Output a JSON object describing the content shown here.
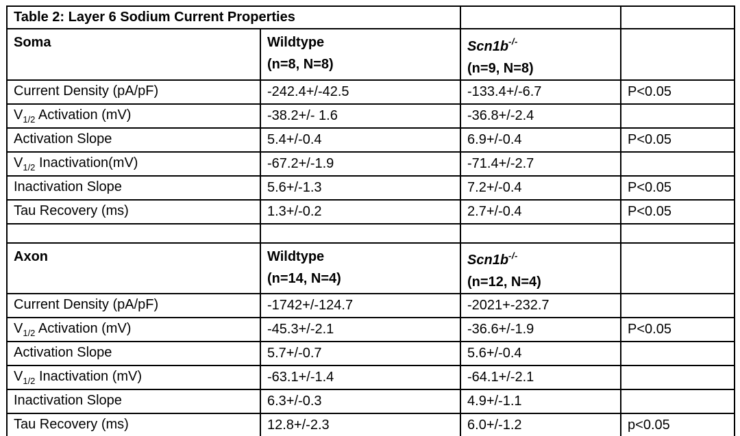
{
  "title": "Table 2: Layer 6 Sodium Current Properties",
  "colors": {
    "border": "#000000",
    "text": "#000000",
    "background": "#ffffff"
  },
  "sections": [
    {
      "name": "Soma",
      "wildtype_line1": "Wildtype",
      "wildtype_line2": "(n=8, N=8)",
      "ko_gene": "Scn1b",
      "ko_sup": "-/-",
      "ko_line2": "(n=9, N=8)",
      "rows": [
        {
          "pre": "Current Density (pA/pF)",
          "sub": "",
          "post": "",
          "wt": "-242.4+/-42.5",
          "ko": "-133.4+/-6.7",
          "p": "P<0.05"
        },
        {
          "pre": "V",
          "sub": "1/2",
          "post": " Activation (mV)",
          "wt": "-38.2+/- 1.6",
          "ko": "-36.8+/-2.4",
          "p": ""
        },
        {
          "pre": "Activation Slope",
          "sub": "",
          "post": "",
          "wt": "5.4+/-0.4",
          "ko": "6.9+/-0.4",
          "p": "P<0.05"
        },
        {
          "pre": "V",
          "sub": "1/2",
          "post": " Inactivation(mV)",
          "wt": "-67.2+/-1.9",
          "ko": "-71.4+/-2.7",
          "p": ""
        },
        {
          "pre": "Inactivation Slope",
          "sub": "",
          "post": "",
          "wt": "5.6+/-1.3",
          "ko": "7.2+/-0.4",
          "p": "P<0.05"
        },
        {
          "pre": "Tau Recovery (ms)",
          "sub": "",
          "post": "",
          "wt": "1.3+/-0.2",
          "ko": "2.7+/-0.4",
          "p": "P<0.05"
        }
      ]
    },
    {
      "name": "Axon",
      "wildtype_line1": "Wildtype",
      "wildtype_line2": "(n=14, N=4)",
      "ko_gene": "Scn1b",
      "ko_sup": "-/-",
      "ko_line2": "(n=12, N=4)",
      "rows": [
        {
          "pre": "Current Density (pA/pF)",
          "sub": "",
          "post": "",
          "wt": "-1742+/-124.7",
          "ko": "-2021+-232.7",
          "p": ""
        },
        {
          "pre": "V",
          "sub": "1/2",
          "post": " Activation (mV)",
          "wt": "-45.3+/-2.1",
          "ko": "-36.6+/-1.9",
          "p": "P<0.05"
        },
        {
          "pre": "Activation Slope",
          "sub": "",
          "post": "",
          "wt": "5.7+/-0.7",
          "ko": "5.6+/-0.4",
          "p": ""
        },
        {
          "pre": "V",
          "sub": "1/2",
          "post": " Inactivation (mV)",
          "wt": "-63.1+/-1.4",
          "ko": "-64.1+/-2.1",
          "p": ""
        },
        {
          "pre": "Inactivation Slope",
          "sub": "",
          "post": "",
          "wt": "6.3+/-0.3",
          "ko": "4.9+/-1.1",
          "p": ""
        },
        {
          "pre": "Tau Recovery (ms)",
          "sub": "",
          "post": "",
          "wt": "12.8+/-2.3",
          "ko": "6.0+/-1.2",
          "p": "p<0.05"
        }
      ]
    }
  ]
}
